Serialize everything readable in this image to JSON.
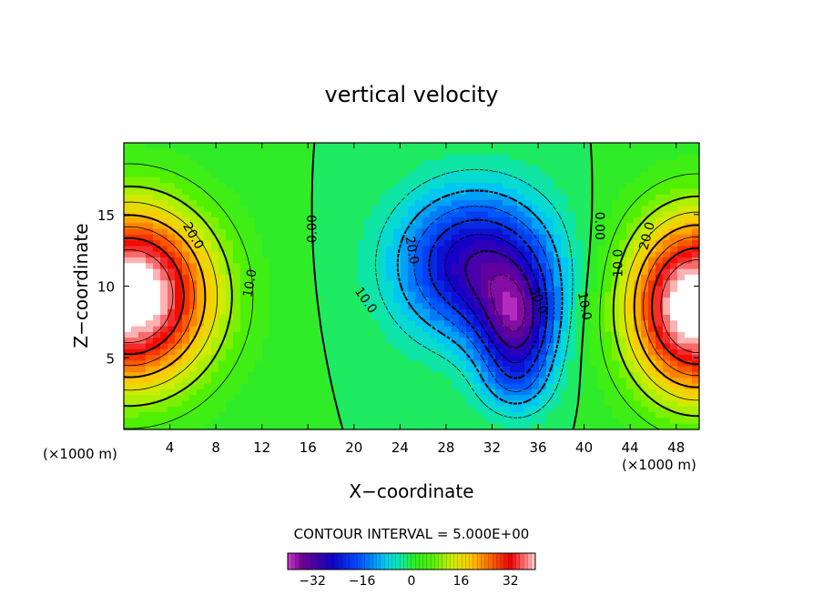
{
  "chart_data": {
    "type": "heatmap",
    "title": "vertical velocity",
    "xlabel": "X−coordinate",
    "ylabel": "Z−coordinate",
    "x_unit": "(×1000 m)",
    "x_unit_right": "(×1000 m)",
    "xlim": [
      0,
      50
    ],
    "ylim": [
      0,
      20
    ],
    "x_ticks": [
      "4",
      "8",
      "12",
      "16",
      "20",
      "24",
      "28",
      "32",
      "36",
      "40",
      "44",
      "48"
    ],
    "y_ticks": [
      "5",
      "10",
      "15"
    ],
    "contour_interval_text": "CONTOUR INTERVAL = 5.000E+00",
    "contour_interval": 5,
    "value_range": [
      -40,
      40
    ],
    "colorbar_ticks": [
      "−32",
      "−16",
      "0",
      "16",
      "32"
    ],
    "contour_labels": [
      {
        "text": "20.0",
        "x": 6.0,
        "z": 13.5,
        "rotate": 60
      },
      {
        "text": "10.0",
        "x": 11.0,
        "z": 10.2,
        "rotate": -80
      },
      {
        "text": "0.00",
        "x": 16.4,
        "z": 14.0,
        "rotate": -90
      },
      {
        "text": "10.0",
        "x": 21.0,
        "z": 9.0,
        "rotate": 55
      },
      {
        "text": "20.0",
        "x": 25.0,
        "z": 12.5,
        "rotate": 80
      },
      {
        "text": "30.0",
        "x": 36.0,
        "z": 9.0,
        "rotate": 70
      },
      {
        "text": "10.0",
        "x": 40.0,
        "z": 8.6,
        "rotate": 80
      },
      {
        "text": "0.00",
        "x": 41.3,
        "z": 14.2,
        "rotate": 90
      },
      {
        "text": "10.0",
        "x": 43.0,
        "z": 11.6,
        "rotate": -90
      },
      {
        "text": "20.0",
        "x": 45.5,
        "z": 13.5,
        "rotate": -75
      }
    ],
    "grid": false,
    "colormap": "rainbow"
  }
}
